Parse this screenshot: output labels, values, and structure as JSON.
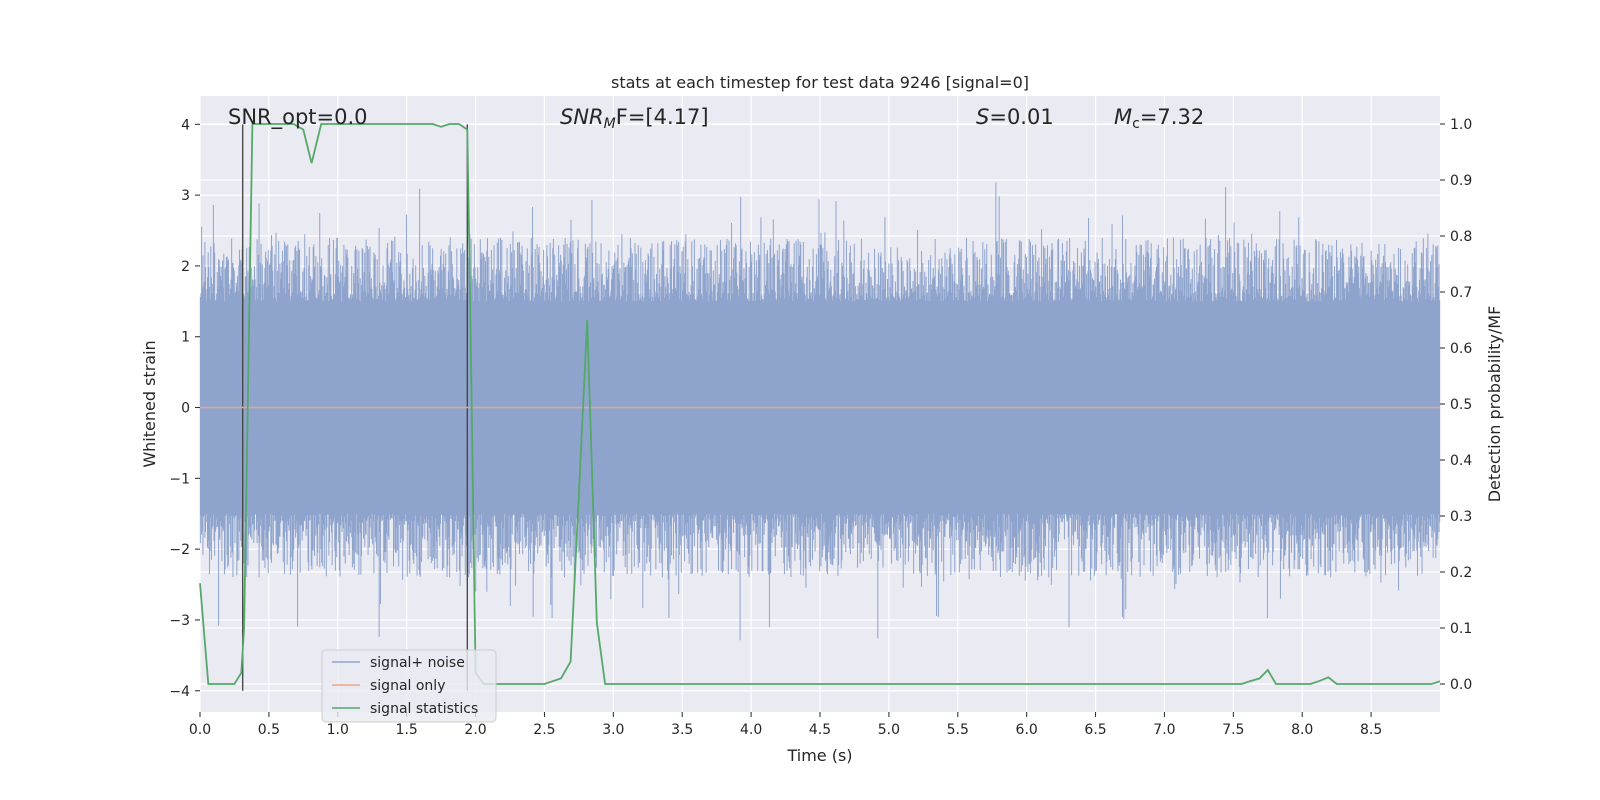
{
  "chart_data": {
    "type": "line",
    "title": "stats at each timestep for test data 9246 [signal=0]",
    "xlabel": "Time (s)",
    "ylabel": "Whitened strain",
    "y2label": "Detection probability/MF",
    "xlim": [
      0,
      9.0
    ],
    "ylim": [
      -4.3,
      4.4
    ],
    "y2lim": [
      -0.05,
      1.05
    ],
    "x_ticks": [
      0.0,
      0.5,
      1.0,
      1.5,
      2.0,
      2.5,
      3.0,
      3.5,
      4.0,
      4.5,
      5.0,
      5.5,
      6.0,
      6.5,
      7.0,
      7.5,
      8.0,
      8.5
    ],
    "x_tick_labels": [
      "0.0",
      "0.5",
      "1.0",
      "1.5",
      "2.0",
      "2.5",
      "3.0",
      "3.5",
      "4.0",
      "4.5",
      "5.0",
      "5.5",
      "6.0",
      "6.5",
      "7.0",
      "7.5",
      "8.0",
      "8.5"
    ],
    "y_ticks": [
      4,
      3,
      2,
      1,
      0,
      -1,
      -2,
      -3,
      -4
    ],
    "y_tick_labels": [
      "4",
      "3",
      "2",
      "1",
      "0",
      "−1",
      "−2",
      "−3",
      "−4"
    ],
    "y2_ticks": [
      1.0,
      0.9,
      0.8,
      0.7,
      0.6,
      0.5,
      0.4,
      0.3,
      0.2,
      0.1,
      0.0
    ],
    "y2_tick_labels": [
      "1.0",
      "0.9",
      "0.8",
      "0.7",
      "0.6",
      "0.5",
      "0.4",
      "0.3",
      "0.2",
      "0.1",
      "0.0"
    ],
    "grid": true,
    "legend_position": "lower-left",
    "legend": [
      "signal+ noise",
      "signal only",
      "signal statistics"
    ],
    "annotations": {
      "snr_opt": "SNR_opt=0.0",
      "snr_mf_main": "SNR",
      "snr_mf_sub": "M",
      "snr_mf_rest": "F=[4.17]",
      "s_main": "S",
      "s_rest": "=0.01",
      "mc_main": "M",
      "mc_sub": "c",
      "mc_rest": "=7.32"
    },
    "vertical_markers_x": [
      0.31,
      1.94
    ],
    "series": [
      {
        "name": "signal+ noise",
        "axis": "left",
        "color": "#8fa4cd",
        "noise_envelope": {
          "typical_amplitude": 1.5,
          "peak_amplitude": 3.9
        }
      },
      {
        "name": "signal only",
        "axis": "left",
        "color": "#e9a58a",
        "x": [
          0,
          9.0
        ],
        "y": [
          0,
          0
        ]
      },
      {
        "name": "signal statistics",
        "axis": "right",
        "color": "#55a868",
        "x": [
          0.0,
          0.06,
          0.12,
          0.18,
          0.25,
          0.3,
          0.32,
          0.38,
          0.44,
          0.5,
          0.56,
          0.62,
          0.68,
          0.75,
          0.81,
          0.88,
          0.94,
          1.0,
          1.06,
          1.12,
          1.19,
          1.25,
          1.31,
          1.38,
          1.44,
          1.5,
          1.56,
          1.62,
          1.69,
          1.75,
          1.81,
          1.88,
          1.94,
          1.96,
          2.0,
          2.06,
          2.12,
          2.19,
          2.25,
          2.31,
          2.38,
          2.44,
          2.5,
          2.56,
          2.62,
          2.69,
          2.75,
          2.81,
          2.88,
          2.94,
          3.0,
          3.5,
          4.0,
          4.5,
          5.0,
          5.5,
          6.0,
          6.5,
          7.0,
          7.5,
          7.56,
          7.62,
          7.69,
          7.75,
          7.81,
          7.88,
          8.0,
          8.06,
          8.12,
          8.19,
          8.25,
          8.31,
          8.5,
          8.94,
          9.0
        ],
        "y": [
          0.18,
          0.0,
          0.0,
          0.0,
          0.0,
          0.02,
          0.1,
          1.0,
          1.0,
          1.0,
          1.0,
          1.0,
          1.0,
          0.99,
          0.93,
          1.0,
          1.0,
          1.0,
          1.0,
          1.0,
          1.0,
          1.0,
          1.0,
          1.0,
          1.0,
          1.0,
          1.0,
          1.0,
          1.0,
          0.995,
          1.0,
          1.0,
          0.99,
          0.7,
          0.02,
          0.0,
          0.0,
          0.0,
          0.0,
          0.0,
          0.0,
          0.0,
          0.0,
          0.005,
          0.01,
          0.04,
          0.34,
          0.65,
          0.11,
          0.0,
          0.0,
          0.0,
          0.0,
          0.0,
          0.0,
          0.0,
          0.0,
          0.0,
          0.0,
          0.0,
          0.0,
          0.005,
          0.01,
          0.025,
          0.0,
          0.0,
          0.0,
          0.0,
          0.005,
          0.012,
          0.0,
          0.0,
          0.0,
          0.0,
          0.005
        ]
      }
    ]
  }
}
